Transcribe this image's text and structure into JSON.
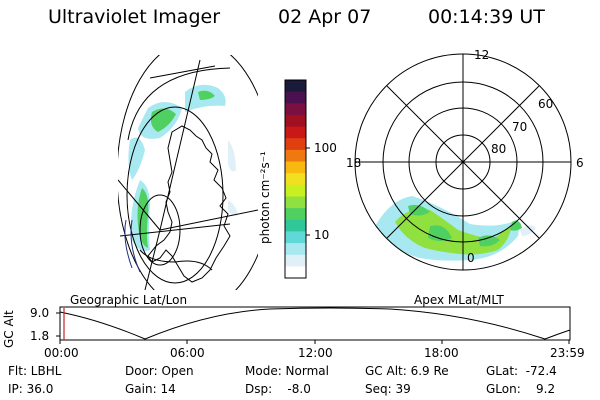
{
  "header": {
    "title": "Ultraviolet Imager",
    "date": "02 Apr 07",
    "time": "00:14:39 UT"
  },
  "colorbar": {
    "label": "photon cm⁻²s⁻¹",
    "ticks": [
      "100",
      "10"
    ],
    "colors": [
      "#1a1a3a",
      "#4a1050",
      "#7a1040",
      "#a01020",
      "#c81818",
      "#e04010",
      "#f07810",
      "#f8b810",
      "#f0e020",
      "#c8f020",
      "#90e040",
      "#50d060",
      "#30c898",
      "#60d8d8",
      "#a8e8f0",
      "#e0f0f8",
      "#ffffff"
    ]
  },
  "geo_map": {
    "label": "Geographic Lat/Lon"
  },
  "polar_plot": {
    "label": "Apex MLat/MLT",
    "mlt_labels": [
      "12",
      "18",
      "6",
      "0"
    ],
    "lat_labels": [
      "60",
      "70",
      "80"
    ]
  },
  "altitude_plot": {
    "ylabel": "GC Alt",
    "yticks": [
      "9.0",
      "1.8"
    ],
    "xticks": [
      "00:00",
      "06:00",
      "12:00",
      "18:00",
      "23:59"
    ]
  },
  "info": {
    "flt": "Flt: LBHL",
    "ip": "IP: 36.0",
    "door": "Door: Open",
    "gain": "Gain: 14",
    "mode": "Mode: Normal",
    "dsp": "Dsp:    -8.0",
    "gcalt": "GC Alt: 6.9 Re",
    "seq": "Seq: 39",
    "glat": "GLat:  -72.4",
    "glon": "GLon:    9.2"
  }
}
